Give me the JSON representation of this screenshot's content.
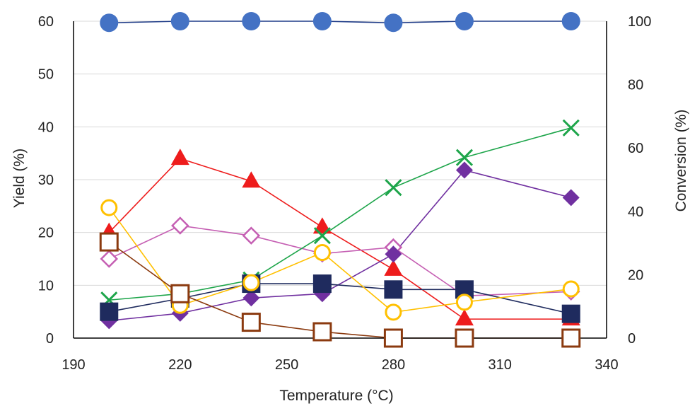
{
  "chart_data": {
    "type": "line",
    "title": "",
    "xlabel": "Temperature (°C)",
    "ylabel": "Yield (%)",
    "y2label": "Conversion (%)",
    "xlim": [
      190,
      340
    ],
    "ylim": [
      0,
      60
    ],
    "y2lim": [
      0,
      100
    ],
    "x_ticks": [
      190,
      220,
      250,
      280,
      310,
      340
    ],
    "y_ticks": [
      0,
      10,
      20,
      30,
      40,
      50,
      60
    ],
    "y2_ticks": [
      0,
      20,
      40,
      60,
      80,
      100
    ],
    "grid": true,
    "series": [
      {
        "axis": "right",
        "marker": "circle-filled",
        "color": "#4472C4",
        "line_color": "#1F3C88",
        "x": [
          200,
          220,
          240,
          260,
          280,
          300,
          330
        ],
        "y": [
          99.5,
          100,
          100,
          100,
          99.5,
          100,
          100
        ]
      },
      {
        "axis": "left",
        "marker": "triangle-filled",
        "color": "#EE1C1C",
        "x": [
          200,
          220,
          240,
          260,
          280,
          300,
          330
        ],
        "y": [
          20,
          34,
          29.7,
          21,
          13,
          3.6,
          3.6
        ]
      },
      {
        "axis": "left",
        "marker": "diamond-open",
        "color": "#C55FB3",
        "x": [
          200,
          220,
          240,
          260,
          280,
          300,
          330
        ],
        "y": [
          15,
          21.3,
          19.4,
          16,
          17.2,
          8,
          8.8
        ]
      },
      {
        "axis": "left",
        "marker": "x",
        "color": "#1DA54A",
        "x": [
          200,
          220,
          240,
          260,
          280,
          300,
          330
        ],
        "y": [
          7.2,
          8.4,
          11,
          19.4,
          28.5,
          34.2,
          39.8
        ]
      },
      {
        "axis": "left",
        "marker": "diamond-filled",
        "color": "#7030A0",
        "x": [
          200,
          220,
          240,
          260,
          280,
          300,
          330
        ],
        "y": [
          3.3,
          4.7,
          7.6,
          8.4,
          15.9,
          31.8,
          26.6
        ]
      },
      {
        "axis": "left",
        "marker": "square-filled",
        "color": "#1F2B5E",
        "x": [
          200,
          220,
          240,
          260,
          280,
          300,
          330
        ],
        "y": [
          5,
          7.5,
          10.3,
          10.3,
          9.2,
          9.2,
          4.6
        ]
      },
      {
        "axis": "left",
        "marker": "circle-open",
        "color": "#FFC000",
        "x": [
          200,
          220,
          240,
          260,
          280,
          300,
          330
        ],
        "y": [
          24.7,
          6.2,
          10.5,
          16.2,
          4.9,
          6.8,
          9.3
        ]
      },
      {
        "axis": "left",
        "marker": "square-open",
        "color": "#8B3A0F",
        "x": [
          200,
          220,
          240,
          260,
          280,
          300,
          330
        ],
        "y": [
          18.2,
          8.4,
          3,
          1.2,
          0,
          0,
          0
        ]
      }
    ]
  }
}
